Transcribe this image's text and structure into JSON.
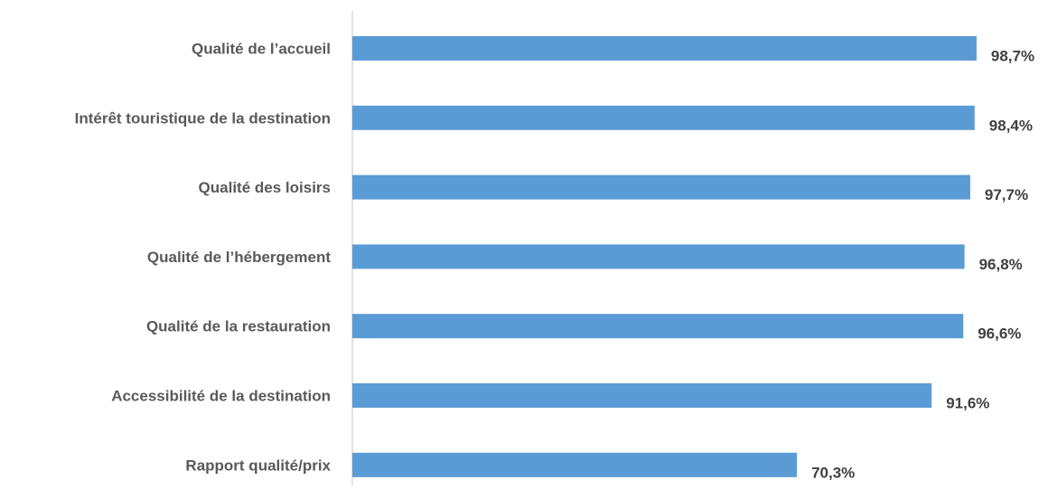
{
  "chart_data": {
    "type": "bar",
    "orientation": "horizontal",
    "categories": [
      "Qualité de l’accueil",
      "Intérêt touristique de la destination",
      "Qualité des loisirs",
      "Qualité de l’hébergement",
      "Qualité de la restauration",
      "Accessibilité de la destination",
      "Rapport qualité/prix"
    ],
    "values": [
      98.7,
      98.4,
      97.7,
      96.8,
      96.6,
      91.6,
      70.3
    ],
    "value_labels": [
      "98,7%",
      "98,4%",
      "97,7%",
      "96,8%",
      "96,6%",
      "91,6%",
      "70,3%"
    ],
    "xlim": [
      0,
      100
    ],
    "grid": false,
    "legend": "none",
    "bar_color": "#5b9bd5",
    "axis_color": "#d9d9d9"
  }
}
